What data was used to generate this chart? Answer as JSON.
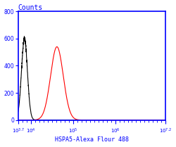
{
  "title": "Counts",
  "xlabel": "HSPA5-Alexa Flour 488",
  "ylabel": "",
  "xlim_log": [
    3.7,
    7.2
  ],
  "ylim": [
    0,
    800
  ],
  "yticks": [
    0,
    200,
    400,
    600,
    800
  ],
  "black_peak_log": 3.85,
  "black_peak_height": 600,
  "black_sigma_log": 0.07,
  "red_peak_log": 4.62,
  "red_peak_height": 540,
  "red_sigma_log": 0.15,
  "background_color": "#ffffff",
  "border_color": "blue",
  "tick_color": "blue",
  "label_color": "blue",
  "black_color": "#000000",
  "red_color": "#ff0000",
  "title_color": "blue",
  "x_tick_positions": [
    3.7,
    4,
    5,
    6,
    7.2
  ],
  "x_tick_labels": [
    "$10^{3.7}$",
    "$10^4$",
    "$10^5$",
    "$10^6$",
    "$10^{7.2}$"
  ]
}
